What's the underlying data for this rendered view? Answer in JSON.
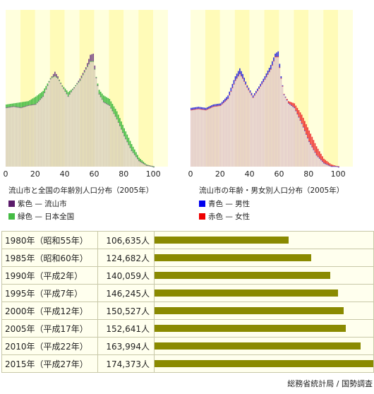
{
  "chart_data": [
    {
      "type": "bar",
      "title": "流山市と全国の年齢別人口分布（2005年）",
      "x_ticks": [
        "0",
        "20",
        "40",
        "60",
        "80",
        "100"
      ],
      "xlim": [
        0,
        110
      ],
      "legend": [
        {
          "swatch_color": "#5a1a6a",
          "label": "紫色 — 流山市"
        },
        {
          "swatch_color": "#44bb44",
          "label": "緑色 — 日本全国"
        }
      ],
      "series": [
        {
          "name": "流山市",
          "color": "#7a4a8a",
          "profile_ages": [
            0,
            5,
            10,
            15,
            20,
            25,
            30,
            33,
            35,
            38,
            42,
            46,
            50,
            54,
            57,
            59,
            61,
            63,
            66,
            70,
            75,
            80,
            85,
            90,
            95,
            100
          ],
          "profile_values": [
            0.52,
            0.53,
            0.52,
            0.54,
            0.55,
            0.62,
            0.78,
            0.84,
            0.8,
            0.71,
            0.62,
            0.7,
            0.78,
            0.88,
            0.99,
            1.0,
            0.79,
            0.64,
            0.57,
            0.54,
            0.42,
            0.27,
            0.14,
            0.05,
            0.01,
            0.0
          ]
        },
        {
          "name": "日本全国",
          "color": "#44bb44",
          "profile_ages": [
            0,
            5,
            10,
            15,
            20,
            25,
            30,
            33,
            35,
            38,
            42,
            46,
            50,
            54,
            57,
            59,
            61,
            63,
            66,
            70,
            75,
            80,
            85,
            90,
            95,
            100
          ],
          "profile_values": [
            0.55,
            0.56,
            0.57,
            0.58,
            0.62,
            0.67,
            0.78,
            0.8,
            0.78,
            0.72,
            0.66,
            0.7,
            0.76,
            0.86,
            0.93,
            0.93,
            0.79,
            0.68,
            0.63,
            0.6,
            0.49,
            0.34,
            0.2,
            0.08,
            0.02,
            0.0
          ]
        }
      ]
    },
    {
      "type": "bar",
      "title": "流山市の年齢・男女別人口分布（2005年）",
      "x_ticks": [
        "0",
        "20",
        "40",
        "60",
        "80",
        "100"
      ],
      "xlim": [
        0,
        110
      ],
      "legend": [
        {
          "swatch_color": "#0000ee",
          "label": "青色 — 男性"
        },
        {
          "swatch_color": "#ee0000",
          "label": "赤色 — 女性"
        }
      ],
      "series": [
        {
          "name": "男性",
          "color": "#3333dd",
          "profile_ages": [
            0,
            5,
            10,
            15,
            20,
            25,
            30,
            33,
            35,
            38,
            42,
            46,
            50,
            54,
            57,
            59,
            61,
            63,
            66,
            70,
            75,
            80,
            85,
            90,
            95,
            100
          ],
          "profile_values": [
            0.52,
            0.53,
            0.52,
            0.55,
            0.56,
            0.63,
            0.8,
            0.87,
            0.82,
            0.72,
            0.63,
            0.71,
            0.8,
            0.9,
            1.0,
            1.02,
            0.8,
            0.64,
            0.56,
            0.52,
            0.38,
            0.22,
            0.1,
            0.03,
            0.0,
            0.0
          ]
        },
        {
          "name": "女性",
          "color": "#ee3333",
          "profile_ages": [
            0,
            5,
            10,
            15,
            20,
            25,
            30,
            33,
            35,
            38,
            42,
            46,
            50,
            54,
            57,
            59,
            61,
            63,
            66,
            70,
            75,
            80,
            85,
            90,
            95,
            100
          ],
          "profile_values": [
            0.5,
            0.51,
            0.5,
            0.53,
            0.54,
            0.6,
            0.76,
            0.82,
            0.78,
            0.7,
            0.61,
            0.69,
            0.77,
            0.86,
            0.97,
            0.97,
            0.78,
            0.64,
            0.58,
            0.56,
            0.46,
            0.32,
            0.18,
            0.07,
            0.02,
            0.0
          ]
        }
      ]
    },
    {
      "type": "bar",
      "categories": [
        "1980年（昭和55年）",
        "1985年（昭和60年）",
        "1990年（平成2年）",
        "1995年（平成7年）",
        "2000年（平成12年）",
        "2005年（平成17年）",
        "2010年（平成22年）",
        "2015年（平成27年）"
      ],
      "value_labels": [
        "106,635人",
        "124,682人",
        "140,059人",
        "146,245人",
        "150,527人",
        "152,641人",
        "163,994人",
        "174,373人"
      ],
      "values": [
        106635,
        124682,
        140059,
        146245,
        150527,
        152641,
        163994,
        174373
      ],
      "xlim": [
        0,
        174373
      ],
      "bar_color": "#8a8a00"
    }
  ],
  "source_note": "総務省統計局 / 国勢調査"
}
